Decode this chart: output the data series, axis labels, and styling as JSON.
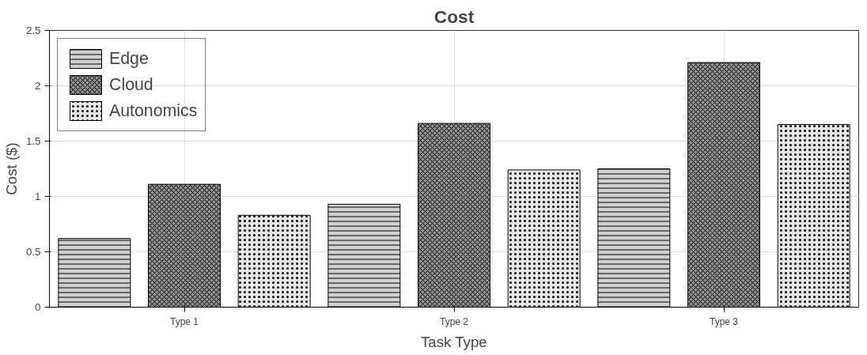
{
  "chart_data": {
    "type": "bar",
    "title": "Cost",
    "xlabel": "Task Type",
    "ylabel": "Cost ($)",
    "categories": [
      "Type 1",
      "Type 2",
      "Type 3"
    ],
    "series": [
      {
        "name": "Edge",
        "color": "#d0d0d0",
        "values": [
          0.62,
          0.93,
          1.25
        ]
      },
      {
        "name": "Cloud",
        "color": "#909090",
        "values": [
          1.11,
          1.66,
          2.21
        ]
      },
      {
        "name": "Autonomics",
        "color": "#e6e6e6",
        "values": [
          0.83,
          1.24,
          1.65
        ]
      }
    ],
    "ylim": [
      0,
      2.5
    ],
    "yticks": [
      0,
      0.5,
      1,
      1.5,
      2,
      2.5
    ],
    "grid": true,
    "legend": "top left"
  }
}
